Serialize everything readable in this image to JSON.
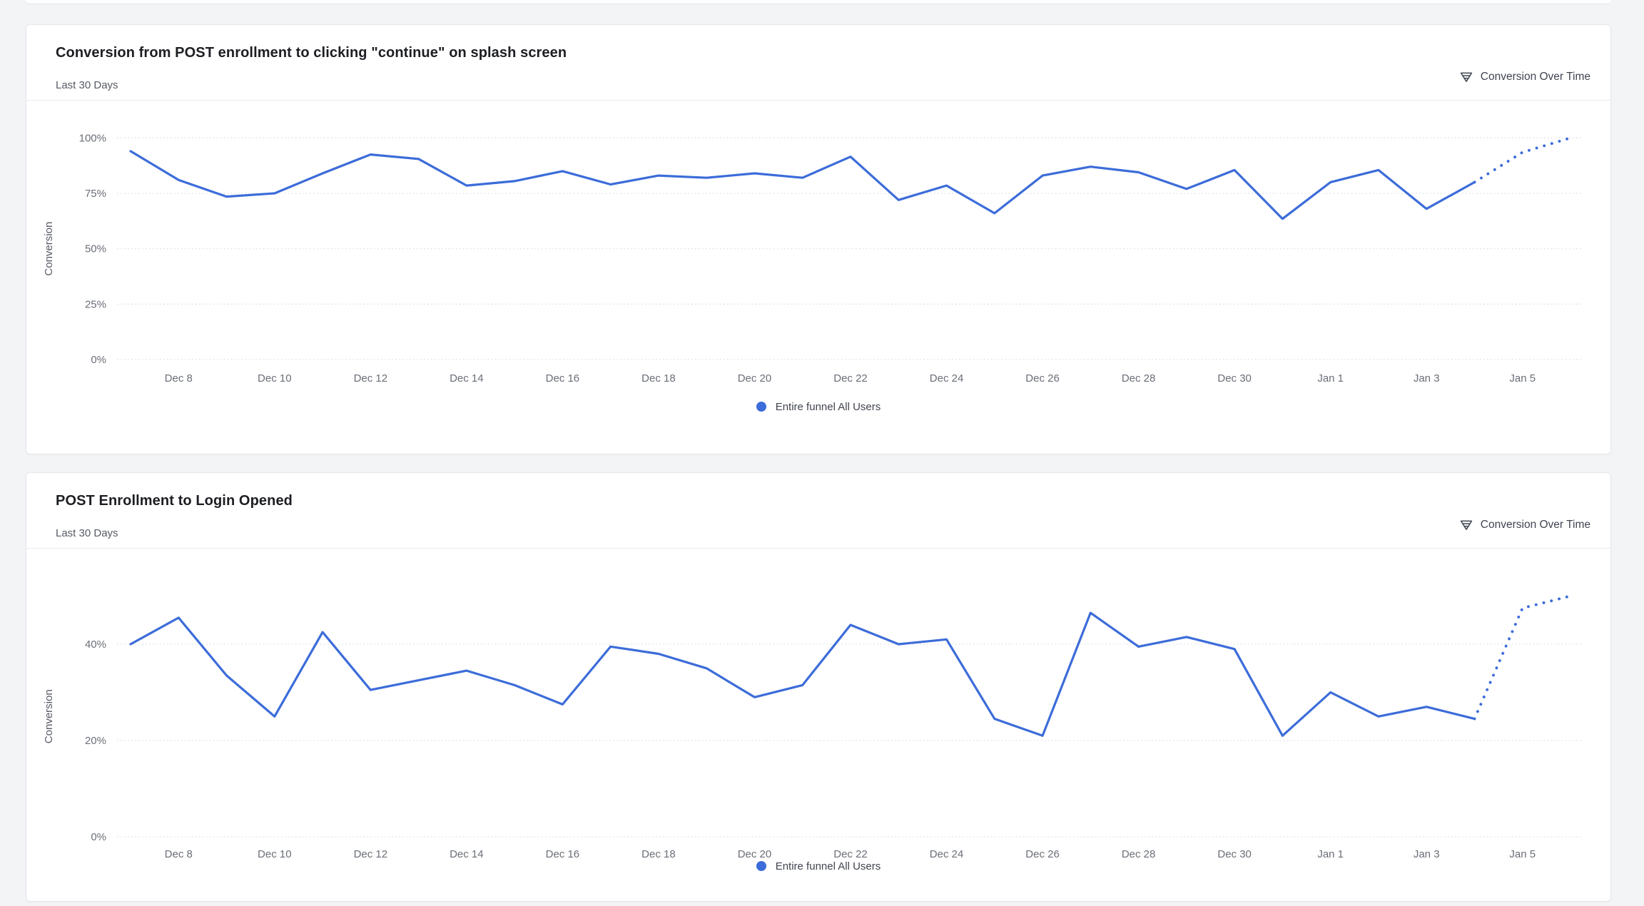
{
  "page": {
    "background_color": "#f3f4f6",
    "accent_color": "#3c6cd9"
  },
  "chart_data": [
    {
      "type": "line",
      "title": "Conversion from POST enrollment to clicking \"continue\" on splash screen",
      "subtitle": "Last 30 Days",
      "meta_label": "Conversion Over Time",
      "ylabel": "Conversion",
      "legend": "Entire funnel All Users",
      "legend_position": "bottom",
      "grid": "horizontal-dotted",
      "line_color": "#3c6cd9",
      "ylim": [
        0,
        100
      ],
      "yticks": [
        0,
        25,
        50,
        75,
        100
      ],
      "ytick_suffix": "%",
      "x": [
        "Dec 7",
        "Dec 8",
        "Dec 9",
        "Dec 10",
        "Dec 11",
        "Dec 12",
        "Dec 13",
        "Dec 14",
        "Dec 15",
        "Dec 16",
        "Dec 17",
        "Dec 18",
        "Dec 19",
        "Dec 20",
        "Dec 21",
        "Dec 22",
        "Dec 23",
        "Dec 24",
        "Dec 25",
        "Dec 26",
        "Dec 27",
        "Dec 28",
        "Dec 29",
        "Dec 30",
        "Dec 31",
        "Jan 1",
        "Jan 2",
        "Jan 3",
        "Jan 4",
        "Jan 5",
        "Jan 6"
      ],
      "xtick_indices": [
        1,
        3,
        5,
        7,
        9,
        11,
        13,
        15,
        17,
        19,
        21,
        23,
        25,
        27,
        29
      ],
      "series": [
        {
          "name": "Entire funnel All Users",
          "values": [
            94,
            81,
            73.5,
            75,
            84,
            92.5,
            90.5,
            78.5,
            80.5,
            85,
            79,
            83,
            82,
            84,
            82,
            91.5,
            72,
            78.5,
            66,
            83,
            87,
            84.5,
            77,
            85.5,
            63.5,
            80,
            85.5,
            68,
            80,
            93.5,
            100
          ]
        }
      ],
      "dotted_from_index": 28
    },
    {
      "type": "line",
      "title": "POST Enrollment to Login Opened",
      "subtitle": "Last 30 Days",
      "meta_label": "Conversion Over Time",
      "ylabel": "Conversion",
      "legend": "Entire funnel All Users",
      "legend_position": "bottom",
      "grid": "horizontal-dotted",
      "line_color": "#3c6cd9",
      "ylim": [
        0,
        50
      ],
      "yticks": [
        0,
        20,
        40
      ],
      "ytick_suffix": "%",
      "x": [
        "Dec 7",
        "Dec 8",
        "Dec 9",
        "Dec 10",
        "Dec 11",
        "Dec 12",
        "Dec 13",
        "Dec 14",
        "Dec 15",
        "Dec 16",
        "Dec 17",
        "Dec 18",
        "Dec 19",
        "Dec 20",
        "Dec 21",
        "Dec 22",
        "Dec 23",
        "Dec 24",
        "Dec 25",
        "Dec 26",
        "Dec 27",
        "Dec 28",
        "Dec 29",
        "Dec 30",
        "Dec 31",
        "Jan 1",
        "Jan 2",
        "Jan 3",
        "Jan 4",
        "Jan 5",
        "Jan 6"
      ],
      "xtick_indices": [
        1,
        3,
        5,
        7,
        9,
        11,
        13,
        15,
        17,
        19,
        21,
        23,
        25,
        27,
        29
      ],
      "series": [
        {
          "name": "Entire funnel All Users",
          "values": [
            40,
            45.5,
            33.5,
            25,
            42.5,
            30.5,
            32.5,
            34.5,
            31.5,
            27.5,
            39.5,
            38,
            35,
            29,
            31.5,
            44,
            40,
            41,
            24.5,
            21,
            46.5,
            39.5,
            41.5,
            39,
            21,
            30,
            25,
            27,
            24.5,
            47.5,
            50
          ]
        }
      ],
      "dotted_from_index": 28
    }
  ]
}
